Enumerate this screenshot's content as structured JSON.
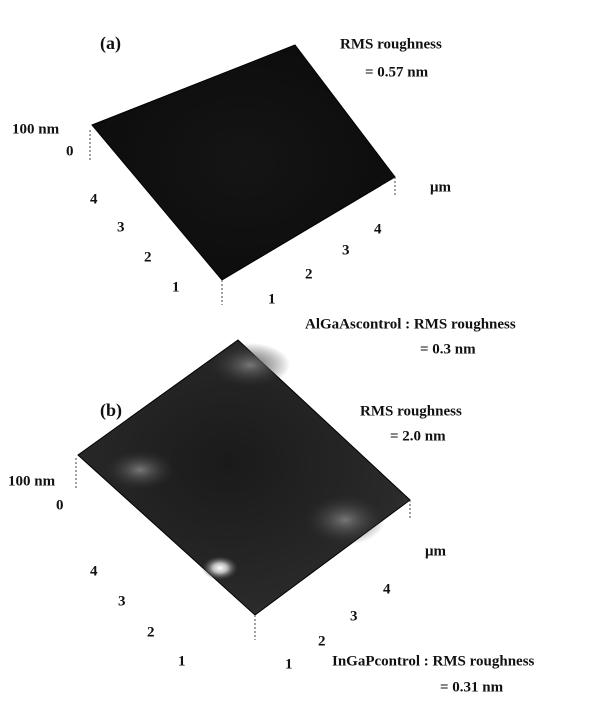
{
  "panels": [
    {
      "label": "(a)",
      "rms_title": "RMS roughness",
      "rms_value": "= 0.57 nm",
      "z_top": "100 nm",
      "z_zero": "0",
      "unit": "μm",
      "left_ticks": [
        "4",
        "3",
        "2",
        "1"
      ],
      "right_ticks": [
        "1",
        "2",
        "3",
        "4"
      ],
      "control": "AlGaAscontrol : RMS roughness",
      "control_value": "= 0.3 nm"
    },
    {
      "label": "(b)",
      "rms_title": "RMS roughness",
      "rms_value": "= 2.0 nm",
      "z_top": "100 nm",
      "z_zero": "0",
      "unit": "μm",
      "left_ticks": [
        "4",
        "3",
        "2",
        "1"
      ],
      "right_ticks": [
        "1",
        "2",
        "3",
        "4"
      ],
      "control": "InGaPcontrol : RMS roughness",
      "control_value": "= 0.31 nm"
    }
  ]
}
